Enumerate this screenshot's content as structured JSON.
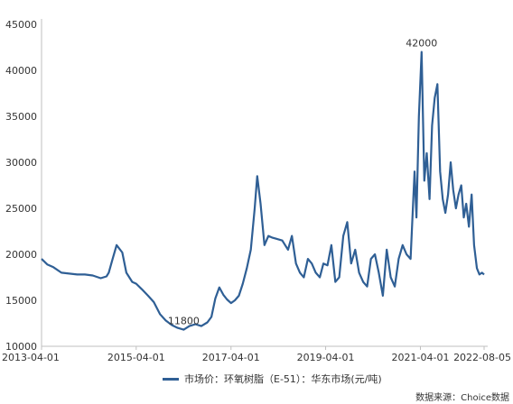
{
  "chart_data": {
    "type": "line",
    "title": "",
    "xlabel": "",
    "ylabel": "",
    "ylim": [
      10000,
      45000
    ],
    "yticks": [
      "10000",
      "15000",
      "20000",
      "25000",
      "30000",
      "35000",
      "40000",
      "45000"
    ],
    "xticks": [
      "2013-04-01",
      "2015-04-01",
      "2017-04-01",
      "2019-04-01",
      "2021-04-01",
      "2022-08-05"
    ],
    "grid": false,
    "legend_position": "bottom-center",
    "series": [
      {
        "name": "市场价：环氧树脂（E-51）：华东市场(元/吨)",
        "color": "#2f5f95",
        "x": [
          "2013-04-01",
          "2013-05-15",
          "2013-07-01",
          "2013-09-01",
          "2013-11-01",
          "2014-01-01",
          "2014-03-01",
          "2014-05-01",
          "2014-07-01",
          "2014-08-15",
          "2014-09-01",
          "2014-10-01",
          "2014-11-01",
          "2014-12-15",
          "2015-01-15",
          "2015-03-01",
          "2015-04-01",
          "2015-05-15",
          "2015-07-01",
          "2015-08-15",
          "2015-10-01",
          "2015-11-15",
          "2016-01-01",
          "2016-02-15",
          "2016-04-01",
          "2016-05-15",
          "2016-07-01",
          "2016-08-15",
          "2016-10-01",
          "2016-11-01",
          "2016-12-01",
          "2017-01-01",
          "2017-02-01",
          "2017-03-01",
          "2017-04-01",
          "2017-05-01",
          "2017-06-01",
          "2017-07-01",
          "2017-08-01",
          "2017-09-01",
          "2017-10-01",
          "2017-10-20",
          "2017-11-15",
          "2017-12-15",
          "2018-01-15",
          "2018-02-15",
          "2018-03-15",
          "2018-05-01",
          "2018-06-15",
          "2018-07-15",
          "2018-08-15",
          "2018-09-15",
          "2018-10-15",
          "2018-11-15",
          "2018-12-15",
          "2019-01-15",
          "2019-02-15",
          "2019-03-15",
          "2019-04-15",
          "2019-05-15",
          "2019-06-15",
          "2019-07-15",
          "2019-08-15",
          "2019-09-15",
          "2019-10-15",
          "2019-11-15",
          "2019-12-15",
          "2020-01-15",
          "2020-02-15",
          "2020-03-15",
          "2020-04-15",
          "2020-05-15",
          "2020-06-15",
          "2020-07-15",
          "2020-08-15",
          "2020-09-15",
          "2020-10-15",
          "2020-11-15",
          "2020-12-15",
          "2021-01-15",
          "2021-02-15",
          "2021-03-01",
          "2021-03-20",
          "2021-04-10",
          "2021-05-01",
          "2021-05-20",
          "2021-06-10",
          "2021-06-30",
          "2021-07-20",
          "2021-08-10",
          "2021-08-31",
          "2021-09-20",
          "2021-10-10",
          "2021-10-31",
          "2021-11-20",
          "2021-12-10",
          "2021-12-31",
          "2022-01-20",
          "2022-02-10",
          "2022-03-01",
          "2022-03-20",
          "2022-04-10",
          "2022-05-01",
          "2022-05-20",
          "2022-06-10",
          "2022-06-30",
          "2022-07-20",
          "2022-08-05"
        ],
        "values": [
          19500,
          18900,
          18600,
          18000,
          17900,
          17800,
          17800,
          17700,
          17400,
          17600,
          18000,
          19500,
          21000,
          20200,
          18000,
          17000,
          16800,
          16200,
          15500,
          14800,
          13500,
          12800,
          12300,
          12000,
          11800,
          12200,
          12400,
          12200,
          12600,
          13200,
          15200,
          16400,
          15600,
          15100,
          14700,
          15000,
          15500,
          16800,
          18500,
          20500,
          25000,
          28500,
          25500,
          21000,
          22000,
          21800,
          21700,
          21500,
          20500,
          22000,
          19000,
          18000,
          17500,
          19500,
          19000,
          18000,
          17500,
          19000,
          18800,
          21000,
          17000,
          17500,
          22000,
          23500,
          19000,
          20500,
          18000,
          17000,
          16500,
          19500,
          20000,
          18000,
          15500,
          20500,
          17500,
          16500,
          19500,
          21000,
          20000,
          19500,
          29000,
          24000,
          35000,
          42000,
          28000,
          31000,
          26000,
          34000,
          37000,
          38500,
          29000,
          26000,
          24500,
          26500,
          30000,
          27000,
          25000,
          26500,
          27500,
          24000,
          25500,
          23000,
          26500,
          21000,
          18500,
          17800,
          18000,
          17800
        ]
      }
    ],
    "annotations": [
      {
        "x": "2021-04-10",
        "y": 42000,
        "text": "42000"
      },
      {
        "x": "2016-04-01",
        "y": 11800,
        "text": "11800"
      }
    ]
  },
  "legend": {
    "label": "市场价：环氧树脂（E-51）：华东市场(元/吨)"
  },
  "source": "数据来源：Choice数据"
}
